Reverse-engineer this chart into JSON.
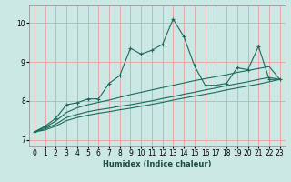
{
  "xlabel": "Humidex (Indice chaleur)",
  "bg_color": "#cce8e4",
  "grid_color": "#e8a0a0",
  "line_color": "#1a6b5c",
  "xlim": [
    -0.5,
    23.5
  ],
  "ylim": [
    6.85,
    10.45
  ],
  "yticks": [
    7,
    8,
    9,
    10
  ],
  "xticks": [
    0,
    1,
    2,
    3,
    4,
    5,
    6,
    7,
    8,
    9,
    10,
    11,
    12,
    13,
    14,
    15,
    16,
    17,
    18,
    19,
    20,
    21,
    22,
    23
  ],
  "series1_x": [
    0,
    1,
    2,
    3,
    4,
    5,
    6,
    7,
    8,
    9,
    10,
    11,
    12,
    13,
    14,
    15,
    16,
    17,
    18,
    19,
    20,
    21,
    22,
    23
  ],
  "series1_y": [
    7.2,
    7.35,
    7.55,
    7.9,
    7.95,
    8.05,
    8.05,
    8.45,
    8.65,
    9.35,
    9.2,
    9.3,
    9.45,
    10.1,
    9.65,
    8.9,
    8.4,
    8.4,
    8.45,
    8.85,
    8.8,
    9.4,
    8.55,
    8.55
  ],
  "series2_x": [
    0,
    1,
    2,
    3,
    4,
    5,
    6,
    7,
    8,
    9,
    10,
    11,
    12,
    13,
    14,
    15,
    16,
    17,
    18,
    19,
    20,
    21,
    22,
    23
  ],
  "series2_y": [
    7.2,
    7.32,
    7.48,
    7.7,
    7.82,
    7.9,
    7.96,
    8.02,
    8.09,
    8.16,
    8.22,
    8.28,
    8.34,
    8.4,
    8.46,
    8.52,
    8.57,
    8.62,
    8.67,
    8.73,
    8.78,
    8.83,
    8.88,
    8.55
  ],
  "series3_x": [
    0,
    1,
    2,
    3,
    4,
    5,
    6,
    7,
    8,
    9,
    10,
    11,
    12,
    13,
    14,
    15,
    16,
    17,
    18,
    19,
    20,
    21,
    22,
    23
  ],
  "series3_y": [
    7.2,
    7.28,
    7.4,
    7.57,
    7.65,
    7.72,
    7.77,
    7.81,
    7.86,
    7.9,
    7.95,
    8.0,
    8.06,
    8.11,
    8.17,
    8.22,
    8.28,
    8.33,
    8.39,
    8.44,
    8.49,
    8.55,
    8.6,
    8.55
  ],
  "series4_x": [
    0,
    1,
    2,
    3,
    4,
    5,
    6,
    7,
    8,
    9,
    10,
    11,
    12,
    13,
    14,
    15,
    16,
    17,
    18,
    19,
    20,
    21,
    22,
    23
  ],
  "series4_y": [
    7.2,
    7.25,
    7.35,
    7.49,
    7.57,
    7.63,
    7.68,
    7.72,
    7.77,
    7.81,
    7.86,
    7.91,
    7.96,
    8.02,
    8.07,
    8.12,
    8.17,
    8.22,
    8.28,
    8.33,
    8.38,
    8.43,
    8.49,
    8.55
  ]
}
